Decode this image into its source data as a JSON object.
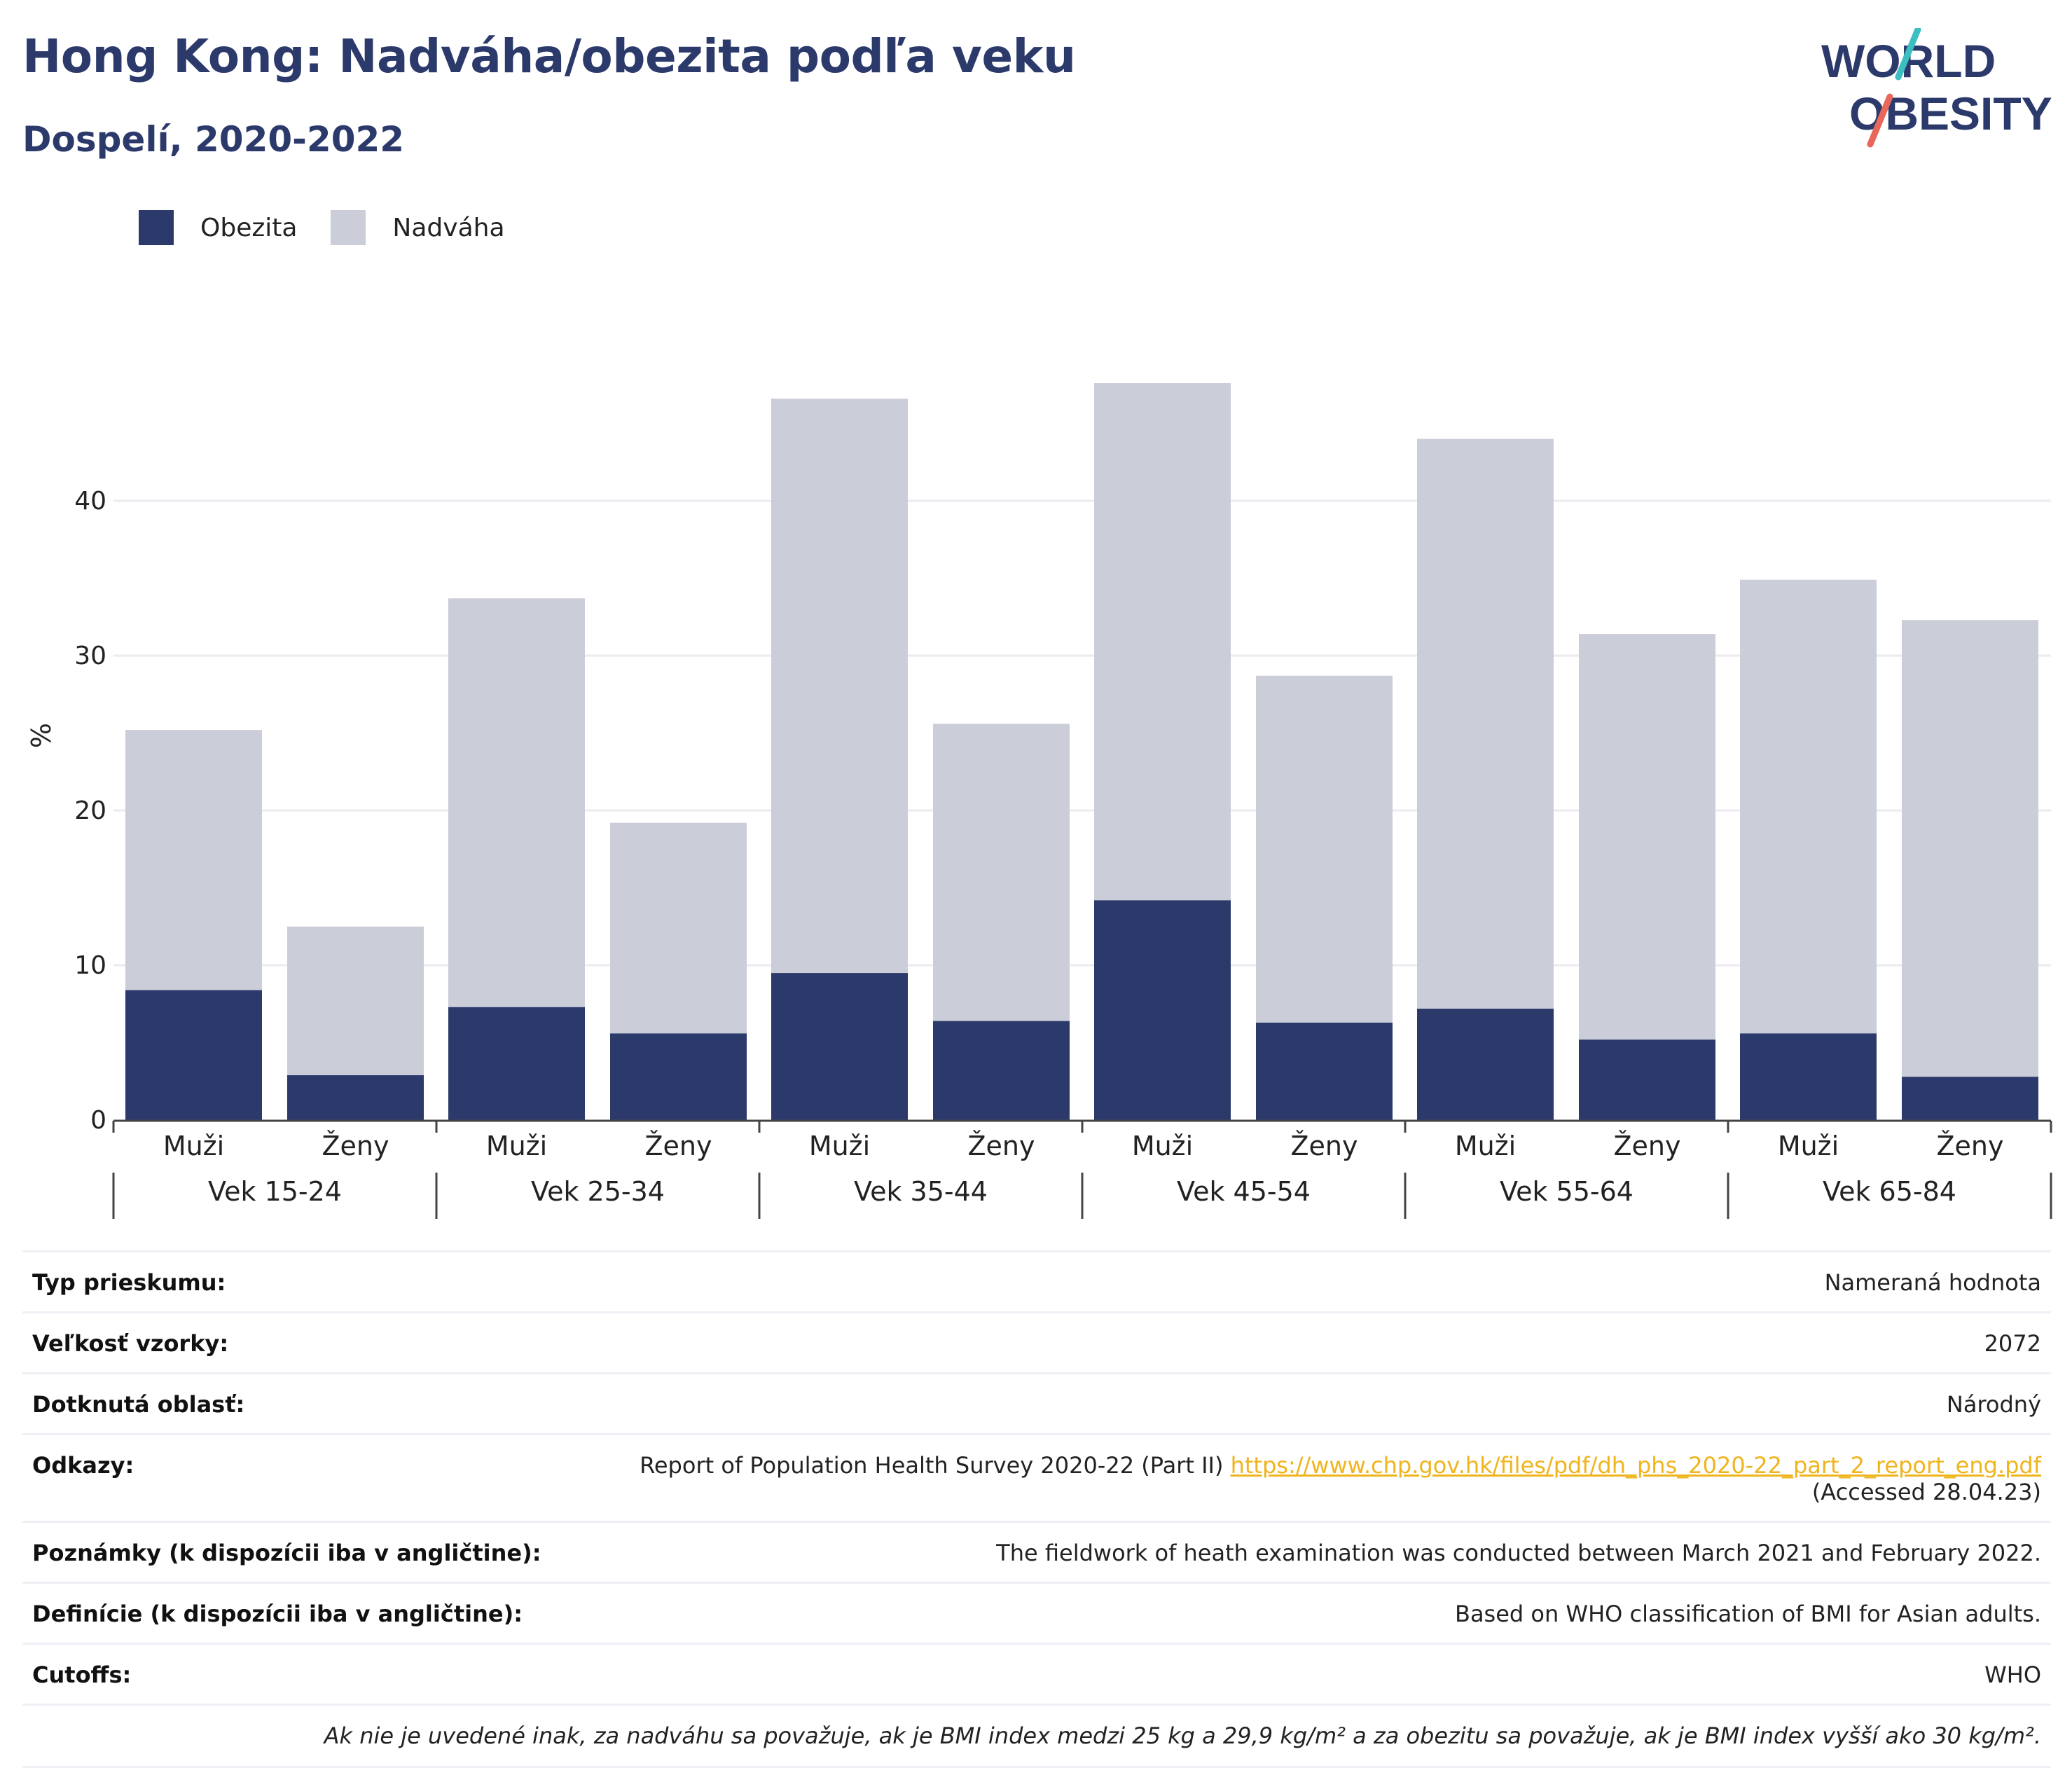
{
  "header": {
    "title": "Hong Kong: Nadváha/obezita podľa veku",
    "subtitle": "Dospelí, 2020-2022"
  },
  "logo": {
    "line1": "WORLD",
    "line2": "OBESITY",
    "colors": {
      "text": "#2c3a6b",
      "slash_top": "#3bbfc0",
      "slash_bottom": "#e8665a"
    }
  },
  "legend": {
    "items": [
      {
        "label": "Obezita",
        "color": "#2c3a6b"
      },
      {
        "label": "Nadváha",
        "color": "#cbcdd9"
      }
    ]
  },
  "chart_data": {
    "type": "bar",
    "stacked": true,
    "ylabel": "%",
    "xlabel": "",
    "ylim": [
      0,
      50
    ],
    "yticks": [
      0,
      10,
      20,
      30,
      40
    ],
    "grid": true,
    "legend_position": "top-left",
    "groups": [
      "Vek 15-24",
      "Vek 25-34",
      "Vek 35-44",
      "Vek 45-54",
      "Vek 55-64",
      "Vek 65-84"
    ],
    "subcategories": [
      "Muži",
      "Ženy"
    ],
    "series": [
      {
        "name": "Obezita",
        "color": "#2c3a6b",
        "values": [
          8.4,
          2.9,
          7.3,
          5.6,
          9.5,
          6.4,
          14.2,
          6.3,
          7.2,
          5.2,
          5.6,
          2.8
        ]
      },
      {
        "name": "Nadváha",
        "color": "#cbcdd9",
        "values": [
          16.8,
          9.6,
          26.4,
          13.6,
          37.1,
          19.2,
          33.4,
          22.4,
          36.8,
          26.2,
          29.3,
          29.5
        ]
      }
    ]
  },
  "info": {
    "rows": [
      {
        "label": "Typ prieskumu:",
        "value": "Nameraná hodnota"
      },
      {
        "label": "Veľkosť vzorky:",
        "value": "2072"
      },
      {
        "label": "Dotknutá oblasť:",
        "value": "Národný"
      },
      {
        "label": "Odkazy:",
        "value": "Report of Population Health Survey 2020-22 (Part II)",
        "link": "https://www.chp.gov.hk/files/pdf/dh_phs_2020-22_part_2_report_eng.pdf",
        "value2": "(Accessed 28.04.23)"
      },
      {
        "label": "Poznámky (k dispozícii iba v angličtine):",
        "value": "The fieldwork of heath examination was conducted between March 2021 and February 2022."
      },
      {
        "label": "Definície (k dispozícii iba v angličtine):",
        "value": "Based on WHO classification of BMI for Asian adults."
      },
      {
        "label": "Cutoffs:",
        "value": "WHO"
      }
    ],
    "note": "Ak nie je uvedené inak, za nadváhu sa považuje, ak je BMI index medzi 25 kg a 29,9 kg/m² a za obezitu sa považuje, ak je BMI index vyšší ako 30 kg/m²."
  }
}
